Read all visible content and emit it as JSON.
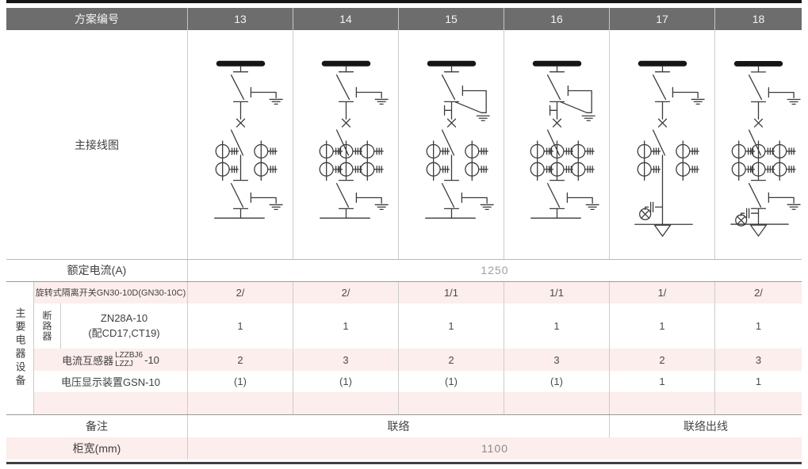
{
  "table": {
    "header": {
      "label": "方案编号",
      "schemes": [
        "13",
        "14",
        "15",
        "16",
        "17",
        "18"
      ]
    },
    "diagram_row_label": "主接线图",
    "rated_current": {
      "label": "额定电流(A)",
      "value": "1250"
    },
    "equipment_group_label": "主要电器设备",
    "equipment_rows": [
      {
        "label": "旋转式隔离开关GN30-10D(GN30-10C)",
        "values": [
          "2/",
          "2/",
          "1/1",
          "1/1",
          "1/",
          "2/"
        ]
      },
      {
        "label_vertical": "断路器",
        "label_line1": "ZN28A-10",
        "label_line2": "(配CD17,CT19)",
        "values": [
          "1",
          "1",
          "1",
          "1",
          "1",
          "1"
        ]
      },
      {
        "label_prefix": "电流互感器",
        "label_fraction_top": "LZZBJ6",
        "label_fraction_bottom": "LZZJ",
        "label_suffix": "-10",
        "values": [
          "2",
          "3",
          "2",
          "3",
          "2",
          "3"
        ]
      },
      {
        "label": "电压显示装置GSN-10",
        "values": [
          "(1)",
          "(1)",
          "(1)",
          "(1)",
          "1",
          "1"
        ]
      },
      {
        "label": "",
        "values": [
          "",
          "",
          "",
          "",
          "",
          ""
        ]
      }
    ],
    "remark": {
      "label": "备注",
      "groups": [
        {
          "text": "联络",
          "span_schemes": [
            "13",
            "14",
            "15",
            "16"
          ]
        },
        {
          "text": "联络出线",
          "span_schemes": [
            "17",
            "18"
          ]
        }
      ]
    },
    "width_row": {
      "label": "柜宽(mm)",
      "value": "1100"
    }
  },
  "diagrams": [
    {
      "scheme": "13",
      "top_earth": "simple",
      "ct_stacks": 2,
      "bottom_switch": true,
      "outgoing": false
    },
    {
      "scheme": "14",
      "top_earth": "simple",
      "ct_stacks": 3,
      "bottom_switch": true,
      "outgoing": false
    },
    {
      "scheme": "15",
      "top_earth": "double",
      "ct_stacks": 2,
      "bottom_switch": true,
      "outgoing": false
    },
    {
      "scheme": "16",
      "top_earth": "double",
      "ct_stacks": 3,
      "bottom_switch": true,
      "outgoing": false
    },
    {
      "scheme": "17",
      "top_earth": "simple",
      "ct_stacks": 2,
      "bottom_switch": false,
      "outgoing": true
    },
    {
      "scheme": "18",
      "top_earth": "simple",
      "ct_stacks": 3,
      "bottom_switch": true,
      "outgoing": true
    }
  ],
  "colors": {
    "header_bg": "#6d6d6d",
    "stripe_pink": "#fceeec",
    "grid_line": "#cccccc",
    "section_line": "#9a9a9a",
    "diagram_stroke": "#3b3b3b",
    "busbar_fill": "#161616"
  }
}
